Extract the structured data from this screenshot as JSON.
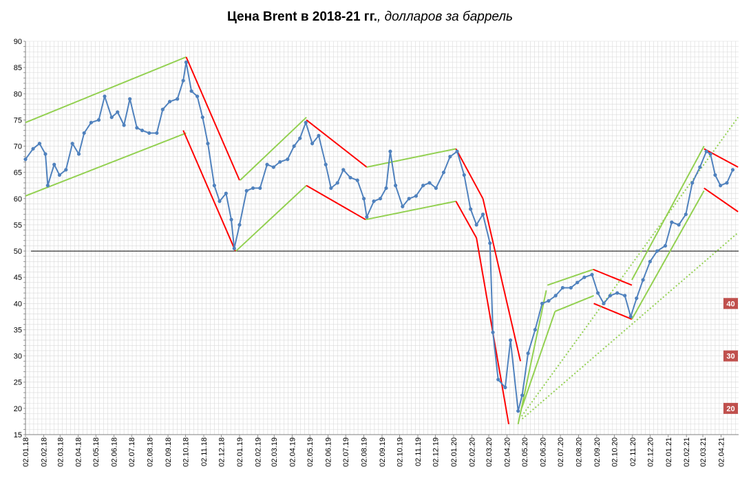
{
  "chart_data": {
    "type": "line",
    "title_bold": "Цена Brent в 2018-21 гг.",
    "title_italic": ", долларов за баррель",
    "ylim": [
      15,
      90
    ],
    "yticks": [
      15,
      20,
      25,
      30,
      35,
      40,
      45,
      50,
      55,
      60,
      65,
      70,
      75,
      80,
      85,
      90
    ],
    "xlim": [
      "2018-01-02",
      "2021-05-02"
    ],
    "xtick_labels": [
      "02.01.18",
      "02.02.18",
      "02.03.18",
      "02.04.18",
      "02.05.18",
      "02.06.18",
      "02.07.18",
      "02.08.18",
      "02.09.18",
      "02.10.18",
      "02.11.18",
      "02.12.18",
      "02.01.19",
      "02.02.19",
      "02.03.19",
      "02.04.19",
      "02.05.19",
      "02.06.19",
      "02.07.19",
      "02.08.19",
      "02.09.19",
      "02.10.19",
      "02.11.19",
      "02.12.19",
      "02.01.20",
      "02.02.20",
      "02.03.20",
      "02.04.20",
      "02.05.20",
      "02.06.20",
      "02.07.20",
      "02.08.20",
      "02.09.20",
      "02.10.20",
      "02.11.20",
      "02.12.20",
      "02.01.21",
      "02.02.21",
      "02.03.21",
      "02.04.21"
    ],
    "grid": true,
    "reference_line": 50,
    "series": [
      {
        "color": "#4f81bd",
        "x": [
          "2018-01-02",
          "2018-01-15",
          "2018-01-26",
          "2018-02-05",
          "2018-02-09",
          "2018-02-20",
          "2018-03-01",
          "2018-03-12",
          "2018-03-23",
          "2018-04-03",
          "2018-04-12",
          "2018-04-24",
          "2018-05-07",
          "2018-05-17",
          "2018-05-29",
          "2018-06-08",
          "2018-06-19",
          "2018-06-29",
          "2018-07-11",
          "2018-07-20",
          "2018-08-01",
          "2018-08-14",
          "2018-08-24",
          "2018-09-05",
          "2018-09-18",
          "2018-09-28",
          "2018-10-03",
          "2018-10-12",
          "2018-10-22",
          "2018-10-31",
          "2018-11-09",
          "2018-11-20",
          "2018-11-29",
          "2018-12-10",
          "2018-12-19",
          "2018-12-24",
          "2019-01-02",
          "2019-01-14",
          "2019-01-25",
          "2019-02-06",
          "2019-02-18",
          "2019-03-01",
          "2019-03-12",
          "2019-03-25",
          "2019-04-05",
          "2019-04-15",
          "2019-04-25",
          "2019-05-06",
          "2019-05-17",
          "2019-05-29",
          "2019-06-07",
          "2019-06-18",
          "2019-06-28",
          "2019-07-10",
          "2019-07-22",
          "2019-08-02",
          "2019-08-07",
          "2019-08-19",
          "2019-08-30",
          "2019-09-09",
          "2019-09-16",
          "2019-09-25",
          "2019-10-07",
          "2019-10-18",
          "2019-10-30",
          "2019-11-11",
          "2019-11-22",
          "2019-12-03",
          "2019-12-16",
          "2019-12-27",
          "2020-01-08",
          "2020-01-20",
          "2020-01-31",
          "2020-02-10",
          "2020-02-21",
          "2020-03-04",
          "2020-03-09",
          "2020-03-18",
          "2020-03-30",
          "2020-04-08",
          "2020-04-21",
          "2020-04-28",
          "2020-05-08",
          "2020-05-20",
          "2020-06-01",
          "2020-06-12",
          "2020-06-24",
          "2020-07-06",
          "2020-07-20",
          "2020-07-31",
          "2020-08-12",
          "2020-08-25",
          "2020-09-04",
          "2020-09-14",
          "2020-09-25",
          "2020-10-07",
          "2020-10-20",
          "2020-10-30",
          "2020-11-09",
          "2020-11-20",
          "2020-12-02",
          "2020-12-14",
          "2020-12-28",
          "2021-01-08",
          "2021-01-20",
          "2021-02-01",
          "2021-02-12",
          "2021-02-25",
          "2021-03-08",
          "2021-03-15",
          "2021-03-23",
          "2021-04-01",
          "2021-04-12",
          "2021-04-22"
        ],
        "values": [
          67.5,
          69.5,
          70.5,
          68.5,
          62.5,
          66.5,
          64.5,
          65.5,
          70.5,
          68.5,
          72.5,
          74.5,
          75.0,
          79.5,
          75.5,
          76.5,
          74.0,
          79.0,
          73.5,
          73.0,
          72.5,
          72.5,
          77.0,
          78.5,
          79.0,
          82.5,
          86.0,
          80.5,
          79.5,
          75.5,
          70.5,
          62.5,
          59.5,
          61.0,
          56.0,
          50.5,
          55.0,
          61.5,
          62.0,
          62.0,
          66.5,
          66.0,
          67.0,
          67.5,
          70.0,
          71.5,
          74.5,
          70.5,
          72.0,
          66.5,
          62.0,
          63.0,
          65.5,
          64.0,
          63.5,
          60.0,
          56.5,
          59.5,
          60.0,
          62.0,
          69.0,
          62.5,
          58.5,
          60.0,
          60.5,
          62.5,
          63.0,
          62.0,
          65.0,
          68.0,
          69.0,
          64.5,
          58.0,
          55.0,
          57.0,
          51.5,
          34.5,
          25.5,
          24.0,
          33.0,
          19.5,
          22.5,
          30.5,
          35.0,
          40.0,
          40.5,
          41.5,
          43.0,
          43.0,
          44.0,
          45.0,
          45.5,
          42.0,
          40.0,
          41.5,
          42.0,
          41.5,
          37.5,
          41.0,
          44.5,
          48.0,
          50.0,
          51.0,
          55.5,
          55.0,
          57.0,
          63.0,
          66.0,
          69.0,
          68.5,
          64.5,
          62.5,
          63.0,
          65.5
        ]
      }
    ],
    "annotation_lines": [
      {
        "color": "#92d050",
        "style": "solid",
        "x": [
          "2018-01-02",
          "2018-10-03"
        ],
        "y": [
          74.5,
          87.0
        ]
      },
      {
        "color": "#92d050",
        "style": "solid",
        "x": [
          "2018-01-02",
          "2018-10-03"
        ],
        "y": [
          60.5,
          72.5
        ]
      },
      {
        "color": "#ff0000",
        "style": "solid",
        "x": [
          "2018-10-03",
          "2019-01-02"
        ],
        "y": [
          87.0,
          63.5
        ]
      },
      {
        "color": "#ff0000",
        "style": "solid",
        "x": [
          "2018-09-28",
          "2018-12-26"
        ],
        "y": [
          73.0,
          50.0
        ]
      },
      {
        "color": "#92d050",
        "style": "solid",
        "x": [
          "2018-12-27",
          "2019-04-26"
        ],
        "y": [
          50.0,
          62.5
        ]
      },
      {
        "color": "#92d050",
        "style": "solid",
        "x": [
          "2019-01-03",
          "2019-04-26"
        ],
        "y": [
          63.5,
          75.5
        ]
      },
      {
        "color": "#ff0000",
        "style": "solid",
        "x": [
          "2019-04-26",
          "2019-08-07"
        ],
        "y": [
          75.0,
          66.0
        ]
      },
      {
        "color": "#ff0000",
        "style": "solid",
        "x": [
          "2019-04-26",
          "2019-08-05"
        ],
        "y": [
          62.5,
          56.0
        ]
      },
      {
        "color": "#92d050",
        "style": "solid",
        "x": [
          "2019-08-07",
          "2020-01-06"
        ],
        "y": [
          66.0,
          69.5
        ]
      },
      {
        "color": "#92d050",
        "style": "solid",
        "x": [
          "2019-08-05",
          "2020-01-06"
        ],
        "y": [
          56.0,
          59.5
        ]
      },
      {
        "color": "#ff0000",
        "style": "solid",
        "x": [
          "2020-01-06",
          "2020-02-21"
        ],
        "y": [
          69.5,
          60.0
        ]
      },
      {
        "color": "#ff0000",
        "style": "solid",
        "x": [
          "2020-02-21",
          "2020-04-25"
        ],
        "y": [
          60.0,
          29.0
        ]
      },
      {
        "color": "#ff0000",
        "style": "solid",
        "x": [
          "2020-01-06",
          "2020-02-10"
        ],
        "y": [
          59.5,
          52.5
        ]
      },
      {
        "color": "#ff0000",
        "style": "solid",
        "x": [
          "2020-02-10",
          "2020-04-05"
        ],
        "y": [
          52.5,
          17.0
        ]
      },
      {
        "color": "#92d050",
        "style": "solid",
        "x": [
          "2020-04-21",
          "2020-06-08"
        ],
        "y": [
          17.0,
          42.5
        ]
      },
      {
        "color": "#92d050",
        "style": "solid",
        "x": [
          "2020-04-27",
          "2020-06-23"
        ],
        "y": [
          20.0,
          38.5
        ]
      },
      {
        "color": "#92d050",
        "style": "solid",
        "x": [
          "2020-06-10",
          "2020-08-27"
        ],
        "y": [
          43.5,
          46.5
        ]
      },
      {
        "color": "#92d050",
        "style": "solid",
        "x": [
          "2020-06-23",
          "2020-08-28"
        ],
        "y": [
          38.5,
          41.5
        ]
      },
      {
        "color": "#ff0000",
        "style": "solid",
        "x": [
          "2020-08-27",
          "2020-11-01"
        ],
        "y": [
          46.5,
          43.5
        ]
      },
      {
        "color": "#ff0000",
        "style": "solid",
        "x": [
          "2020-08-28",
          "2020-11-01"
        ],
        "y": [
          40.0,
          37.0
        ]
      },
      {
        "color": "#92d050",
        "style": "solid",
        "x": [
          "2020-11-01",
          "2021-03-04"
        ],
        "y": [
          44.5,
          70.0
        ]
      },
      {
        "color": "#92d050",
        "style": "solid",
        "x": [
          "2020-11-01",
          "2021-03-04"
        ],
        "y": [
          37.0,
          61.5
        ]
      },
      {
        "color": "#ff0000",
        "style": "solid",
        "x": [
          "2021-03-04",
          "2021-05-01"
        ],
        "y": [
          69.5,
          66.0
        ]
      },
      {
        "color": "#ff0000",
        "style": "solid",
        "x": [
          "2021-03-04",
          "2021-05-01"
        ],
        "y": [
          62.0,
          57.5
        ]
      },
      {
        "color": "#92d050",
        "style": "dotted",
        "x": [
          "2020-04-27",
          "2021-05-01"
        ],
        "y": [
          18.5,
          75.5
        ]
      },
      {
        "color": "#92d050",
        "style": "dotted",
        "x": [
          "2020-04-28",
          "2021-05-01"
        ],
        "y": [
          18.0,
          53.5
        ]
      }
    ],
    "markers": [
      {
        "label": "40",
        "value": 40,
        "color": "#c0504d"
      },
      {
        "label": "30",
        "value": 30,
        "color": "#c0504d"
      },
      {
        "label": "20",
        "value": 20,
        "color": "#c0504d"
      }
    ]
  }
}
